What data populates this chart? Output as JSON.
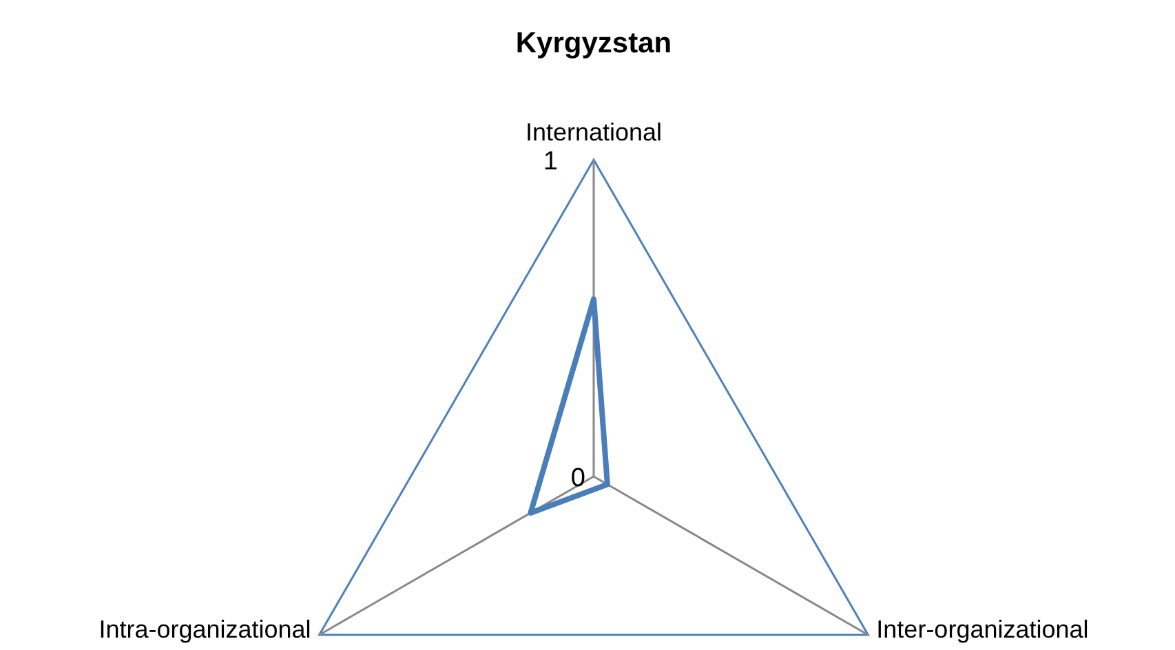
{
  "chart_data": {
    "type": "radar",
    "title": "Kyrgyzstan",
    "categories": [
      "International",
      "Inter-organizational",
      "Intra-organizational"
    ],
    "series": [
      {
        "color": "#4a7ebb",
        "values": [
          0.56,
          0.05,
          0.23
        ]
      }
    ],
    "ylim": [
      0,
      1
    ],
    "yticks": [
      0,
      1
    ],
    "grid": true,
    "marker": "none",
    "line_style": "solid"
  }
}
